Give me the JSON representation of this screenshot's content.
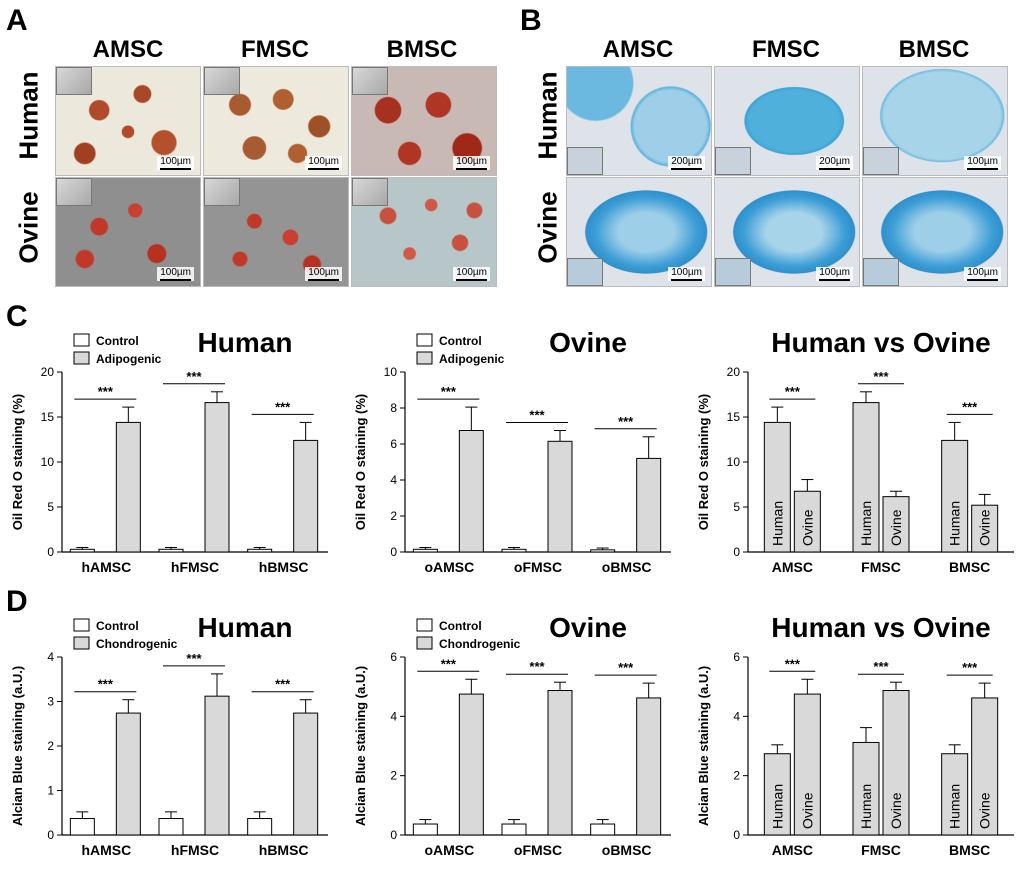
{
  "panels": {
    "a_letter": "A",
    "b_letter": "B",
    "c_letter": "C",
    "d_letter": "D"
  },
  "micrographs": {
    "columns": [
      "AMSC",
      "FMSC",
      "BMSC"
    ],
    "rows": [
      "Human",
      "Ovine"
    ],
    "adipo_scale": [
      "100µm",
      "100µm",
      "100µm",
      "100µm",
      "100µm",
      "100µm"
    ],
    "chondro_scale": [
      "200µm",
      "200µm",
      "100µm",
      "100µm",
      "100µm",
      "100µm"
    ]
  },
  "colors": {
    "bar_control": "#ffffff",
    "bar_treated": "#d9d9d9",
    "adipo_bg_human": "#ece8dc",
    "adipo_stain": "#b04a2a",
    "adipo_bg_ovine": "#8f8f8f",
    "chondro_bg": "#dde3e8",
    "chondro_stain": "#3d9ed6"
  },
  "chart_data": [
    {
      "id": "c1",
      "type": "bar",
      "title": "Human",
      "ylabel": "Oil Red O staining (%)",
      "ylim": [
        0,
        20
      ],
      "yticks": [
        0,
        5,
        10,
        15,
        20
      ],
      "categories": [
        "hAMSC",
        "hFMSC",
        "hBMSC"
      ],
      "legend": [
        "Control",
        "Adipogenic"
      ],
      "series": [
        {
          "name": "Control",
          "values": [
            0.3,
            0.3,
            0.3
          ],
          "errors": [
            0.2,
            0.2,
            0.2
          ]
        },
        {
          "name": "Adipogenic",
          "values": [
            14.4,
            16.6,
            12.4
          ],
          "errors": [
            1.7,
            1.2,
            2.0
          ]
        }
      ],
      "significance": [
        "***",
        "***",
        "***"
      ]
    },
    {
      "id": "c2",
      "type": "bar",
      "title": "Ovine",
      "ylabel": "Oil Red O staining (%)",
      "ylim": [
        0,
        10
      ],
      "yticks": [
        0,
        2,
        4,
        6,
        8,
        10
      ],
      "categories": [
        "oAMSC",
        "oFMSC",
        "oBMSC"
      ],
      "legend": [
        "Control",
        "Adipogenic"
      ],
      "series": [
        {
          "name": "Control",
          "values": [
            0.15,
            0.15,
            0.12
          ],
          "errors": [
            0.1,
            0.1,
            0.1
          ]
        },
        {
          "name": "Adipogenic",
          "values": [
            6.75,
            6.15,
            5.2
          ],
          "errors": [
            1.3,
            0.6,
            1.2
          ]
        }
      ],
      "significance": [
        "***",
        "***",
        "***"
      ]
    },
    {
      "id": "c3",
      "type": "bar",
      "title": "Human vs Ovine",
      "ylabel": "Oil Red O staining (%)",
      "ylim": [
        0,
        20
      ],
      "yticks": [
        0,
        5,
        10,
        15,
        20
      ],
      "categories": [
        "AMSC",
        "FMSC",
        "BMSC"
      ],
      "bar_labels": [
        "Human",
        "Ovine"
      ],
      "series": [
        {
          "name": "Human",
          "values": [
            14.4,
            16.6,
            12.4
          ],
          "errors": [
            1.7,
            1.2,
            2.0
          ]
        },
        {
          "name": "Ovine",
          "values": [
            6.75,
            6.15,
            5.2
          ],
          "errors": [
            1.3,
            0.6,
            1.2
          ]
        }
      ],
      "significance": [
        "***",
        "***",
        "***"
      ]
    },
    {
      "id": "d1",
      "type": "bar",
      "title": "Human",
      "ylabel": "Alcian Blue staining (a.U.)",
      "ylim": [
        0,
        4
      ],
      "yticks": [
        0,
        1,
        2,
        3,
        4
      ],
      "categories": [
        "hAMSC",
        "hFMSC",
        "hBMSC"
      ],
      "legend": [
        "Control",
        "Chondrogenic"
      ],
      "series": [
        {
          "name": "Control",
          "values": [
            0.37,
            0.37,
            0.37
          ],
          "errors": [
            0.15,
            0.15,
            0.15
          ]
        },
        {
          "name": "Chondrogenic",
          "values": [
            2.74,
            3.12,
            2.74
          ],
          "errors": [
            0.3,
            0.5,
            0.3
          ]
        }
      ],
      "significance": [
        "***",
        "***",
        "***"
      ]
    },
    {
      "id": "d2",
      "type": "bar",
      "title": "Ovine",
      "ylabel": "Alcian Blue staining (a.U.)",
      "ylim": [
        0,
        6
      ],
      "yticks": [
        0,
        2,
        4,
        6
      ],
      "categories": [
        "oAMSC",
        "oFMSC",
        "oBMSC"
      ],
      "legend": [
        "Control",
        "Chondrogenic"
      ],
      "series": [
        {
          "name": "Control",
          "values": [
            0.37,
            0.37,
            0.37
          ],
          "errors": [
            0.15,
            0.15,
            0.15
          ]
        },
        {
          "name": "Chondrogenic",
          "values": [
            4.75,
            4.87,
            4.62
          ],
          "errors": [
            0.5,
            0.28,
            0.5
          ]
        }
      ],
      "significance": [
        "***",
        "***",
        "***"
      ]
    },
    {
      "id": "d3",
      "type": "bar",
      "title": "Human vs Ovine",
      "ylabel": "Alcian Blue staining (a.U.)",
      "ylim": [
        0,
        6
      ],
      "yticks": [
        0,
        2,
        4,
        6
      ],
      "categories": [
        "AMSC",
        "FMSC",
        "BMSC"
      ],
      "bar_labels": [
        "Human",
        "Ovine"
      ],
      "series": [
        {
          "name": "Human",
          "values": [
            2.74,
            3.12,
            2.74
          ],
          "errors": [
            0.3,
            0.5,
            0.3
          ]
        },
        {
          "name": "Ovine",
          "values": [
            4.75,
            4.87,
            4.62
          ],
          "errors": [
            0.5,
            0.28,
            0.5
          ]
        }
      ],
      "significance": [
        "***",
        "***",
        "***"
      ]
    }
  ]
}
